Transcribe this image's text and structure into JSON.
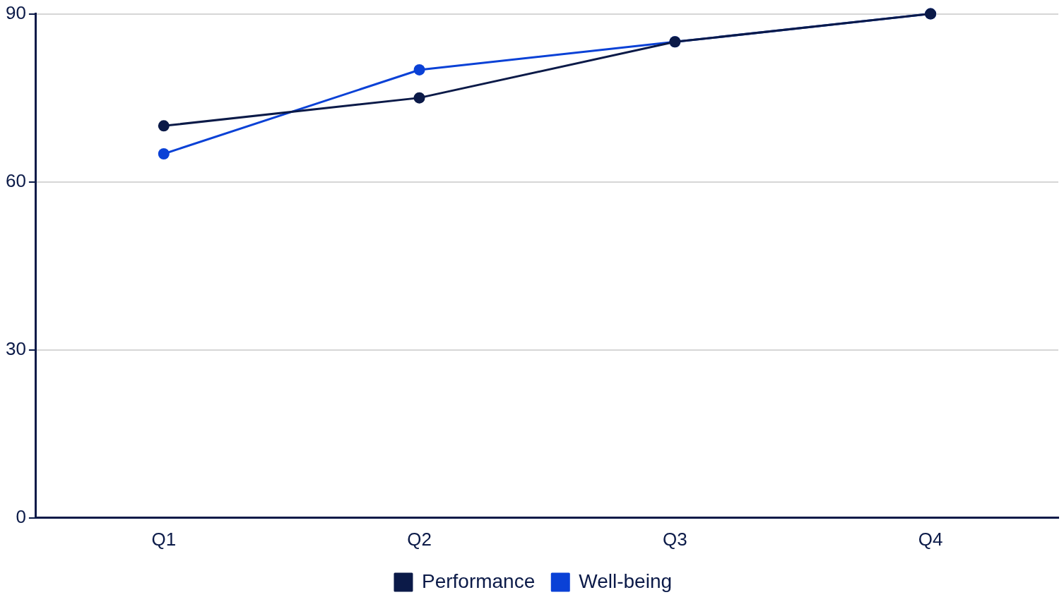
{
  "chart_data": {
    "type": "line",
    "categories": [
      "Q1",
      "Q2",
      "Q3",
      "Q4"
    ],
    "series": [
      {
        "name": "Performance",
        "color": "#0b1a48",
        "values": [
          70,
          75,
          85,
          90
        ]
      },
      {
        "name": "Well-being",
        "color": "#0a41d6",
        "values": [
          65,
          80,
          85,
          90
        ]
      }
    ],
    "ylim": [
      0,
      90
    ],
    "yticks": [
      0,
      30,
      60,
      90
    ],
    "grid": "y",
    "legend": "bottom",
    "marker": "circle",
    "line_style": "solid"
  }
}
